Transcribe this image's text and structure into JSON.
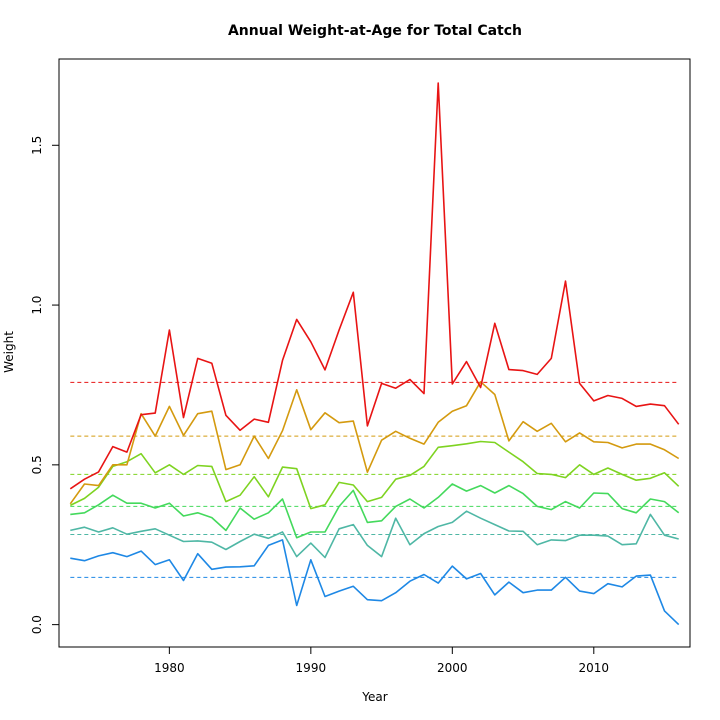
{
  "chart_data": {
    "type": "line",
    "title": "Annual Weight-at-Age for Total Catch",
    "xlabel": "Year",
    "ylabel": "Weight",
    "xlim": [
      1972.2,
      2016.8
    ],
    "ylim": [
      -0.07,
      1.77
    ],
    "xticks": [
      1980,
      1990,
      2000,
      2010
    ],
    "yticks": [
      0.0,
      0.5,
      1.0,
      1.5
    ],
    "ytick_labels": [
      "0.0",
      "0.5",
      "1.0",
      "1.5"
    ],
    "grid": false,
    "x": [
      1973,
      1974,
      1975,
      1976,
      1977,
      1978,
      1979,
      1980,
      1981,
      1982,
      1983,
      1984,
      1985,
      1986,
      1987,
      1988,
      1989,
      1990,
      1991,
      1992,
      1993,
      1994,
      1995,
      1996,
      1997,
      1998,
      1999,
      2000,
      2001,
      2002,
      2003,
      2004,
      2005,
      2006,
      2007,
      2008,
      2009,
      2010,
      2011,
      2012,
      2013,
      2014,
      2015,
      2016
    ],
    "series": [
      {
        "color": "#1e88e5",
        "mean": 0.148,
        "values": [
          0.208,
          0.2,
          0.215,
          0.225,
          0.213,
          0.23,
          0.188,
          0.203,
          0.138,
          0.222,
          0.173,
          0.18,
          0.181,
          0.184,
          0.248,
          0.265,
          0.06,
          0.203,
          0.088,
          0.105,
          0.12,
          0.078,
          0.075,
          0.1,
          0.136,
          0.157,
          0.13,
          0.183,
          0.143,
          0.16,
          0.093,
          0.133,
          0.1,
          0.108,
          0.108,
          0.148,
          0.105,
          0.097,
          0.128,
          0.118,
          0.152,
          0.155,
          0.043,
          0.0
        ]
      },
      {
        "color": "#4fb7a5",
        "mean": 0.282,
        "values": [
          0.295,
          0.305,
          0.29,
          0.303,
          0.283,
          0.292,
          0.3,
          0.28,
          0.26,
          0.262,
          0.258,
          0.235,
          0.26,
          0.283,
          0.27,
          0.29,
          0.213,
          0.255,
          0.21,
          0.3,
          0.313,
          0.248,
          0.213,
          0.333,
          0.25,
          0.285,
          0.307,
          0.32,
          0.355,
          0.333,
          0.313,
          0.293,
          0.292,
          0.25,
          0.265,
          0.263,
          0.28,
          0.28,
          0.277,
          0.25,
          0.253,
          0.345,
          0.28,
          0.268
        ]
      },
      {
        "color": "#44d95c",
        "mean": 0.37,
        "values": [
          0.345,
          0.35,
          0.375,
          0.405,
          0.38,
          0.38,
          0.365,
          0.38,
          0.34,
          0.35,
          0.335,
          0.295,
          0.365,
          0.33,
          0.35,
          0.393,
          0.272,
          0.29,
          0.29,
          0.37,
          0.42,
          0.32,
          0.325,
          0.37,
          0.393,
          0.365,
          0.398,
          0.44,
          0.418,
          0.435,
          0.412,
          0.435,
          0.41,
          0.37,
          0.36,
          0.385,
          0.365,
          0.412,
          0.41,
          0.363,
          0.35,
          0.393,
          0.385,
          0.35
        ]
      },
      {
        "color": "#7ed321",
        "mean": 0.47,
        "values": [
          0.373,
          0.395,
          0.43,
          0.495,
          0.51,
          0.535,
          0.475,
          0.5,
          0.47,
          0.498,
          0.495,
          0.385,
          0.405,
          0.463,
          0.4,
          0.493,
          0.488,
          0.363,
          0.375,
          0.445,
          0.437,
          0.385,
          0.398,
          0.455,
          0.467,
          0.495,
          0.555,
          0.56,
          0.566,
          0.573,
          0.57,
          0.54,
          0.51,
          0.473,
          0.47,
          0.46,
          0.5,
          0.47,
          0.49,
          0.47,
          0.452,
          0.458,
          0.475,
          0.433
        ]
      },
      {
        "color": "#d49a0f",
        "mean": 0.59,
        "values": [
          0.378,
          0.44,
          0.435,
          0.5,
          0.5,
          0.66,
          0.59,
          0.683,
          0.592,
          0.66,
          0.668,
          0.485,
          0.5,
          0.59,
          0.52,
          0.607,
          0.735,
          0.61,
          0.663,
          0.632,
          0.637,
          0.477,
          0.577,
          0.605,
          0.583,
          0.565,
          0.633,
          0.668,
          0.685,
          0.76,
          0.72,
          0.575,
          0.635,
          0.605,
          0.63,
          0.572,
          0.6,
          0.572,
          0.57,
          0.553,
          0.565,
          0.565,
          0.547,
          0.52
        ]
      },
      {
        "color": "#e81414",
        "mean": 0.758,
        "values": [
          0.425,
          0.455,
          0.478,
          0.557,
          0.54,
          0.657,
          0.662,
          0.922,
          0.648,
          0.833,
          0.818,
          0.655,
          0.608,
          0.643,
          0.633,
          0.827,
          0.955,
          0.885,
          0.797,
          0.922,
          1.04,
          0.622,
          0.755,
          0.74,
          0.767,
          0.723,
          1.695,
          0.753,
          0.823,
          0.742,
          0.943,
          0.798,
          0.795,
          0.783,
          0.833,
          1.075,
          0.755,
          0.7,
          0.717,
          0.708,
          0.683,
          0.69,
          0.685,
          0.627
        ]
      }
    ]
  }
}
